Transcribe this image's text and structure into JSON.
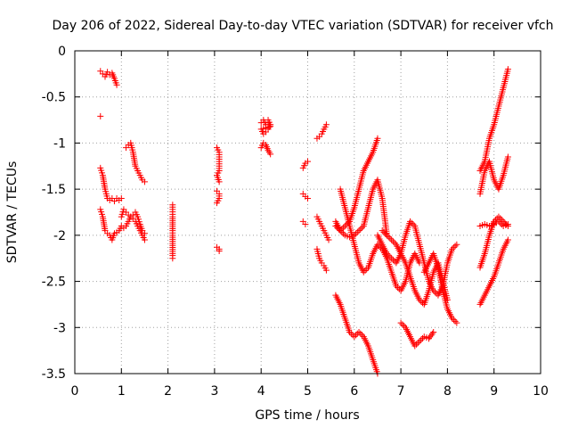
{
  "chart_data": {
    "type": "scatter",
    "title": "Day 206 of 2022, Sidereal Day-to-day VTEC variation (SDTVAR) for receiver vfch",
    "xlabel": "GPS time / hours",
    "ylabel": "SDTVAR / TECUs",
    "xlim": [
      0,
      10
    ],
    "ylim": [
      -3.5,
      0
    ],
    "xticks": [
      "0",
      "1",
      "2",
      "3",
      "4",
      "5",
      "6",
      "7",
      "8",
      "9",
      "10"
    ],
    "yticks": [
      "0",
      "-0.5",
      "-1",
      "-1.5",
      "-2",
      "-2.5",
      "-3",
      "-3.5"
    ],
    "grid": true,
    "marker": "+",
    "color": "#ff0000",
    "series": [
      {
        "name": "s1",
        "x": [
          0.55,
          0.6,
          0.65,
          0.7,
          0.75,
          0.8,
          0.85,
          0.9
        ],
        "y": [
          -0.22,
          -0.25,
          -0.28,
          -0.23,
          -0.26,
          -0.24,
          -0.3,
          -0.37
        ]
      },
      {
        "name": "s2",
        "x": [
          0.55
        ],
        "y": [
          -0.71
        ]
      },
      {
        "name": "s3",
        "x": [
          0.55,
          0.6,
          0.65,
          0.7,
          0.75,
          0.8,
          0.85,
          0.9,
          0.95,
          1.0
        ],
        "y": [
          -1.27,
          -1.35,
          -1.5,
          -1.6,
          -1.62,
          -1.6,
          -1.63,
          -1.6,
          -1.62,
          -1.6
        ]
      },
      {
        "name": "s4",
        "x": [
          0.55,
          0.6,
          0.65,
          0.7,
          0.75,
          0.8,
          0.85,
          0.9,
          0.95,
          1.0
        ],
        "y": [
          -1.72,
          -1.8,
          -1.95,
          -1.98,
          -2.0,
          -2.05,
          -1.98,
          -1.97,
          -1.95,
          -1.9
        ]
      },
      {
        "name": "s5",
        "x": [
          1.1,
          1.15,
          1.2,
          1.25,
          1.3,
          1.35,
          1.4,
          1.45,
          1.5
        ],
        "y": [
          -1.05,
          -1.02,
          -1.0,
          -1.1,
          -1.25,
          -1.3,
          -1.35,
          -1.4,
          -1.42
        ]
      },
      {
        "name": "s6",
        "x": [
          1.0,
          1.05,
          1.1,
          1.15,
          1.2,
          1.25,
          1.3,
          1.35,
          1.4,
          1.45,
          1.5
        ],
        "y": [
          -1.8,
          -1.72,
          -1.75,
          -1.78,
          -1.8,
          -1.82,
          -1.85,
          -1.9,
          -1.95,
          -2.0,
          -2.05
        ]
      },
      {
        "name": "s7",
        "x": [
          1.05,
          1.1,
          1.15,
          1.2,
          1.25,
          1.3,
          1.35,
          1.4,
          1.45,
          1.5
        ],
        "y": [
          -1.92,
          -1.9,
          -1.85,
          -1.8,
          -1.78,
          -1.75,
          -1.8,
          -1.88,
          -1.95,
          -1.98
        ]
      },
      {
        "name": "s8",
        "x": [
          2.1,
          2.1,
          2.1,
          2.1,
          2.1,
          2.1,
          2.1
        ],
        "y": [
          -1.67,
          -1.72,
          -1.8,
          -1.95,
          -2.0,
          -2.22,
          -2.25
        ]
      },
      {
        "name": "s9",
        "x": [
          3.05,
          3.1,
          3.1,
          3.1,
          3.05,
          3.1
        ],
        "y": [
          -1.05,
          -1.1,
          -1.2,
          -1.3,
          -1.35,
          -1.42
        ]
      },
      {
        "name": "s10",
        "x": [
          3.05,
          3.1,
          3.1,
          3.05
        ],
        "y": [
          -1.52,
          -1.55,
          -1.6,
          -1.65
        ]
      },
      {
        "name": "s11",
        "x": [
          3.05,
          3.1,
          3.1
        ],
        "y": [
          -2.13,
          -2.15,
          -2.17
        ]
      },
      {
        "name": "s12",
        "x": [
          4.0,
          4.05,
          4.1,
          4.15,
          4.2,
          4.0,
          4.05,
          4.1,
          4.15,
          4.2,
          4.15
        ],
        "y": [
          -0.78,
          -0.75,
          -0.8,
          -0.78,
          -0.82,
          -0.85,
          -0.9,
          -0.88,
          -0.85,
          -0.8,
          -0.75
        ]
      },
      {
        "name": "s13",
        "x": [
          4.0,
          4.05,
          4.1,
          4.15,
          4.2
        ],
        "y": [
          -1.05,
          -1.0,
          -1.02,
          -1.08,
          -1.12
        ]
      },
      {
        "name": "s14",
        "x": [
          4.9,
          4.95,
          5.0
        ],
        "y": [
          -1.27,
          -1.22,
          -1.2
        ]
      },
      {
        "name": "s15",
        "x": [
          4.9,
          4.95,
          5.0
        ],
        "y": [
          -1.55,
          -1.58,
          -1.6
        ]
      },
      {
        "name": "s16",
        "x": [
          4.9,
          4.95
        ],
        "y": [
          -1.85,
          -1.88
        ]
      },
      {
        "name": "s17",
        "x": [
          5.2,
          5.25,
          5.3,
          5.35,
          5.4
        ],
        "y": [
          -0.95,
          -0.93,
          -0.9,
          -0.85,
          -0.8
        ]
      },
      {
        "name": "s18",
        "x": [
          5.2,
          5.25,
          5.3,
          5.35,
          5.4,
          5.45
        ],
        "y": [
          -1.8,
          -1.85,
          -1.9,
          -1.95,
          -2.0,
          -2.05
        ]
      },
      {
        "name": "s19",
        "x": [
          5.2,
          5.25,
          5.3,
          5.35,
          5.4
        ],
        "y": [
          -2.15,
          -2.25,
          -2.3,
          -2.33,
          -2.38
        ]
      },
      {
        "name": "s20",
        "x": [
          5.6,
          5.7,
          5.8,
          5.9,
          6.0,
          6.1,
          6.2,
          6.3,
          6.4,
          6.5
        ],
        "y": [
          -1.85,
          -1.95,
          -1.9,
          -1.85,
          -1.7,
          -1.5,
          -1.3,
          -1.2,
          -1.1,
          -0.95
        ]
      },
      {
        "name": "s21",
        "x": [
          5.6,
          5.7,
          5.8,
          5.9,
          6.0,
          6.1,
          6.2,
          6.3,
          6.4,
          6.5,
          6.6,
          6.7
        ],
        "y": [
          -1.9,
          -1.95,
          -2.0,
          -2.02,
          -2.0,
          -1.95,
          -1.9,
          -1.7,
          -1.5,
          -1.4,
          -1.6,
          -2.0
        ]
      },
      {
        "name": "s22",
        "x": [
          5.7,
          5.8,
          5.9,
          6.0,
          6.1,
          6.2,
          6.3,
          6.4,
          6.5,
          6.6,
          6.7,
          6.8,
          6.9,
          7.0,
          7.1,
          7.2,
          7.3,
          7.4
        ],
        "y": [
          -1.5,
          -1.7,
          -1.9,
          -2.1,
          -2.3,
          -2.4,
          -2.35,
          -2.2,
          -2.1,
          -2.15,
          -2.25,
          -2.4,
          -2.55,
          -2.6,
          -2.5,
          -2.3,
          -2.2,
          -2.3
        ]
      },
      {
        "name": "s23",
        "x": [
          5.6,
          5.7,
          5.8,
          5.9,
          6.0,
          6.1,
          6.2,
          6.3,
          6.4,
          6.5
        ],
        "y": [
          -2.65,
          -2.75,
          -2.9,
          -3.05,
          -3.1,
          -3.05,
          -3.1,
          -3.2,
          -3.35,
          -3.5
        ]
      },
      {
        "name": "s24",
        "x": [
          6.5,
          6.6,
          6.7,
          6.8,
          6.9,
          7.0,
          7.1,
          7.2,
          7.3,
          7.4,
          7.5,
          7.6,
          7.7,
          7.8,
          7.9,
          8.0,
          8.1,
          8.2
        ],
        "y": [
          -2.0,
          -2.1,
          -2.2,
          -2.25,
          -2.3,
          -2.2,
          -2.0,
          -1.85,
          -1.9,
          -2.1,
          -2.3,
          -2.5,
          -2.6,
          -2.65,
          -2.55,
          -2.3,
          -2.15,
          -2.1
        ]
      },
      {
        "name": "s25",
        "x": [
          6.6,
          6.7,
          6.8,
          6.9,
          7.0,
          7.1,
          7.2,
          7.3,
          7.4,
          7.5,
          7.6,
          7.7,
          7.8,
          7.9,
          8.0
        ],
        "y": [
          -1.95,
          -2.0,
          -2.05,
          -2.1,
          -2.2,
          -2.3,
          -2.45,
          -2.6,
          -2.7,
          -2.75,
          -2.6,
          -2.4,
          -2.3,
          -2.5,
          -2.7
        ]
      },
      {
        "name": "s26",
        "x": [
          7.0,
          7.1,
          7.2,
          7.3,
          7.4,
          7.5,
          7.6,
          7.7
        ],
        "y": [
          -2.95,
          -3.0,
          -3.1,
          -3.2,
          -3.15,
          -3.1,
          -3.12,
          -3.05
        ]
      },
      {
        "name": "s27",
        "x": [
          7.5,
          7.6,
          7.7,
          7.8,
          7.9,
          8.0,
          8.1,
          8.2
        ],
        "y": [
          -2.4,
          -2.3,
          -2.2,
          -2.35,
          -2.6,
          -2.8,
          -2.9,
          -2.95
        ]
      },
      {
        "name": "s28",
        "x": [
          8.7,
          8.8,
          8.9,
          9.0,
          9.1,
          9.2,
          9.3
        ],
        "y": [
          -1.3,
          -1.2,
          -0.95,
          -0.8,
          -0.6,
          -0.4,
          -0.2
        ]
      },
      {
        "name": "s29",
        "x": [
          8.7,
          8.8,
          8.9,
          9.0,
          9.1,
          9.2,
          9.3
        ],
        "y": [
          -1.55,
          -1.3,
          -1.2,
          -1.4,
          -1.5,
          -1.35,
          -1.15
        ]
      },
      {
        "name": "s30",
        "x": [
          8.7,
          8.8,
          8.9,
          9.0,
          9.1,
          9.2,
          9.3
        ],
        "y": [
          -1.9,
          -1.88,
          -1.9,
          -1.88,
          -1.85,
          -1.9,
          -1.88
        ]
      },
      {
        "name": "s31",
        "x": [
          8.7,
          8.8,
          8.9,
          9.0,
          9.1,
          9.2,
          9.3
        ],
        "y": [
          -2.35,
          -2.2,
          -2.0,
          -1.85,
          -1.8,
          -1.85,
          -1.9
        ]
      },
      {
        "name": "s32",
        "x": [
          8.7,
          8.8,
          8.9,
          9.0,
          9.1,
          9.2,
          9.3
        ],
        "y": [
          -2.75,
          -2.65,
          -2.55,
          -2.45,
          -2.3,
          -2.15,
          -2.05
        ]
      }
    ]
  }
}
